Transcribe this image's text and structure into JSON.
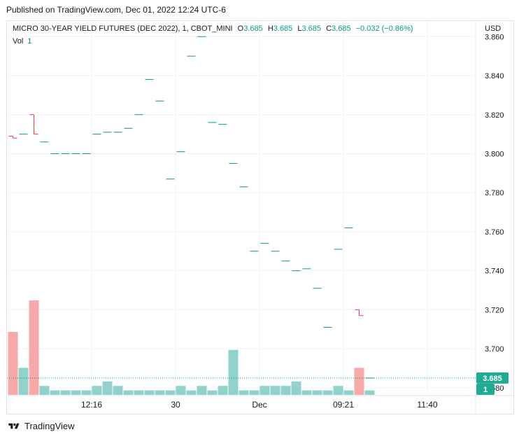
{
  "header": {
    "published": "Published on TradingView.com, Dec 01, 2022 12:24 UTC-6"
  },
  "legend": {
    "symbol": "MICRO 30-YEAR YIELD FUTURES (DEC 2022), 1, CBOT_MINI",
    "o_label": "O",
    "o": "3.685",
    "h_label": "H",
    "h": "3.685",
    "l_label": "L",
    "l": "3.685",
    "c_label": "C",
    "c": "3.685",
    "change": "−0.032 (−0.86%)",
    "vol_label": "Vol",
    "vol": "1"
  },
  "currency": "USD",
  "footer": {
    "brand": "TradingView",
    "logo_icon": "tradingview-logo-icon"
  },
  "colors": {
    "up": "#089981",
    "down": "#f23645",
    "vol_up": "#92d2cc",
    "vol_down": "#f7a9a7",
    "badge": "#22ab94"
  },
  "chart_data": {
    "type": "ohlc",
    "y_axis": {
      "min": 3.676,
      "max": 3.868,
      "ticks": [
        3.68,
        3.7,
        3.72,
        3.74,
        3.76,
        3.78,
        3.8,
        3.82,
        3.84,
        3.86
      ]
    },
    "x_axis": {
      "tick_labels": [
        "12:16",
        "30",
        "Dec",
        "09:21",
        "11:40"
      ],
      "tick_bars": [
        7.5,
        15.5,
        23.5,
        31.5,
        39.5
      ]
    },
    "last_price": "3.685",
    "last_volume": "1",
    "bars": [
      {
        "o": 3.809,
        "h": 3.809,
        "l": 3.808,
        "c": 3.808,
        "v": 14
      },
      {
        "o": 3.81,
        "h": 3.81,
        "l": 3.81,
        "c": 3.81,
        "v": 6
      },
      {
        "o": 3.82,
        "h": 3.82,
        "l": 3.81,
        "c": 3.81,
        "v": 21
      },
      {
        "o": 3.806,
        "h": 3.806,
        "l": 3.806,
        "c": 3.806,
        "v": 2
      },
      {
        "o": 3.8,
        "h": 3.8,
        "l": 3.8,
        "c": 3.8,
        "v": 1
      },
      {
        "o": 3.8,
        "h": 3.8,
        "l": 3.8,
        "c": 3.8,
        "v": 1
      },
      {
        "o": 3.8,
        "h": 3.8,
        "l": 3.8,
        "c": 3.8,
        "v": 1
      },
      {
        "o": 3.8,
        "h": 3.8,
        "l": 3.8,
        "c": 3.8,
        "v": 1
      },
      {
        "o": 3.81,
        "h": 3.81,
        "l": 3.81,
        "c": 3.81,
        "v": 2
      },
      {
        "o": 3.811,
        "h": 3.811,
        "l": 3.811,
        "c": 3.811,
        "v": 3
      },
      {
        "o": 3.811,
        "h": 3.811,
        "l": 3.811,
        "c": 3.811,
        "v": 2
      },
      {
        "o": 3.813,
        "h": 3.813,
        "l": 3.813,
        "c": 3.813,
        "v": 1
      },
      {
        "o": 3.82,
        "h": 3.82,
        "l": 3.82,
        "c": 3.82,
        "v": 1
      },
      {
        "o": 3.838,
        "h": 3.838,
        "l": 3.838,
        "c": 3.838,
        "v": 1
      },
      {
        "o": 3.827,
        "h": 3.827,
        "l": 3.827,
        "c": 3.827,
        "v": 1
      },
      {
        "o": 3.787,
        "h": 3.787,
        "l": 3.787,
        "c": 3.787,
        "v": 1
      },
      {
        "o": 3.801,
        "h": 3.801,
        "l": 3.801,
        "c": 3.801,
        "v": 2
      },
      {
        "o": 3.85,
        "h": 3.85,
        "l": 3.85,
        "c": 3.85,
        "v": 1
      },
      {
        "o": 3.86,
        "h": 3.86,
        "l": 3.86,
        "c": 3.86,
        "v": 2
      },
      {
        "o": 3.816,
        "h": 3.816,
        "l": 3.816,
        "c": 3.816,
        "v": 1
      },
      {
        "o": 3.815,
        "h": 3.815,
        "l": 3.815,
        "c": 3.815,
        "v": 2
      },
      {
        "o": 3.795,
        "h": 3.795,
        "l": 3.795,
        "c": 3.795,
        "v": 10
      },
      {
        "o": 3.783,
        "h": 3.783,
        "l": 3.783,
        "c": 3.783,
        "v": 1
      },
      {
        "o": 3.75,
        "h": 3.75,
        "l": 3.75,
        "c": 3.75,
        "v": 1
      },
      {
        "o": 3.754,
        "h": 3.754,
        "l": 3.754,
        "c": 3.754,
        "v": 2
      },
      {
        "o": 3.75,
        "h": 3.75,
        "l": 3.75,
        "c": 3.75,
        "v": 2
      },
      {
        "o": 3.745,
        "h": 3.745,
        "l": 3.745,
        "c": 3.745,
        "v": 2
      },
      {
        "o": 3.74,
        "h": 3.74,
        "l": 3.74,
        "c": 3.74,
        "v": 3
      },
      {
        "o": 3.741,
        "h": 3.741,
        "l": 3.741,
        "c": 3.741,
        "v": 1
      },
      {
        "o": 3.731,
        "h": 3.731,
        "l": 3.731,
        "c": 3.731,
        "v": 1
      },
      {
        "o": 3.711,
        "h": 3.711,
        "l": 3.711,
        "c": 3.711,
        "v": 1
      },
      {
        "o": 3.751,
        "h": 3.751,
        "l": 3.751,
        "c": 3.751,
        "v": 2
      },
      {
        "o": 3.762,
        "h": 3.762,
        "l": 3.762,
        "c": 3.762,
        "v": 1
      },
      {
        "o": 3.72,
        "h": 3.72,
        "l": 3.717,
        "c": 3.717,
        "v": 6
      },
      {
        "o": 3.685,
        "h": 3.685,
        "l": 3.685,
        "c": 3.685,
        "v": 1
      }
    ]
  }
}
